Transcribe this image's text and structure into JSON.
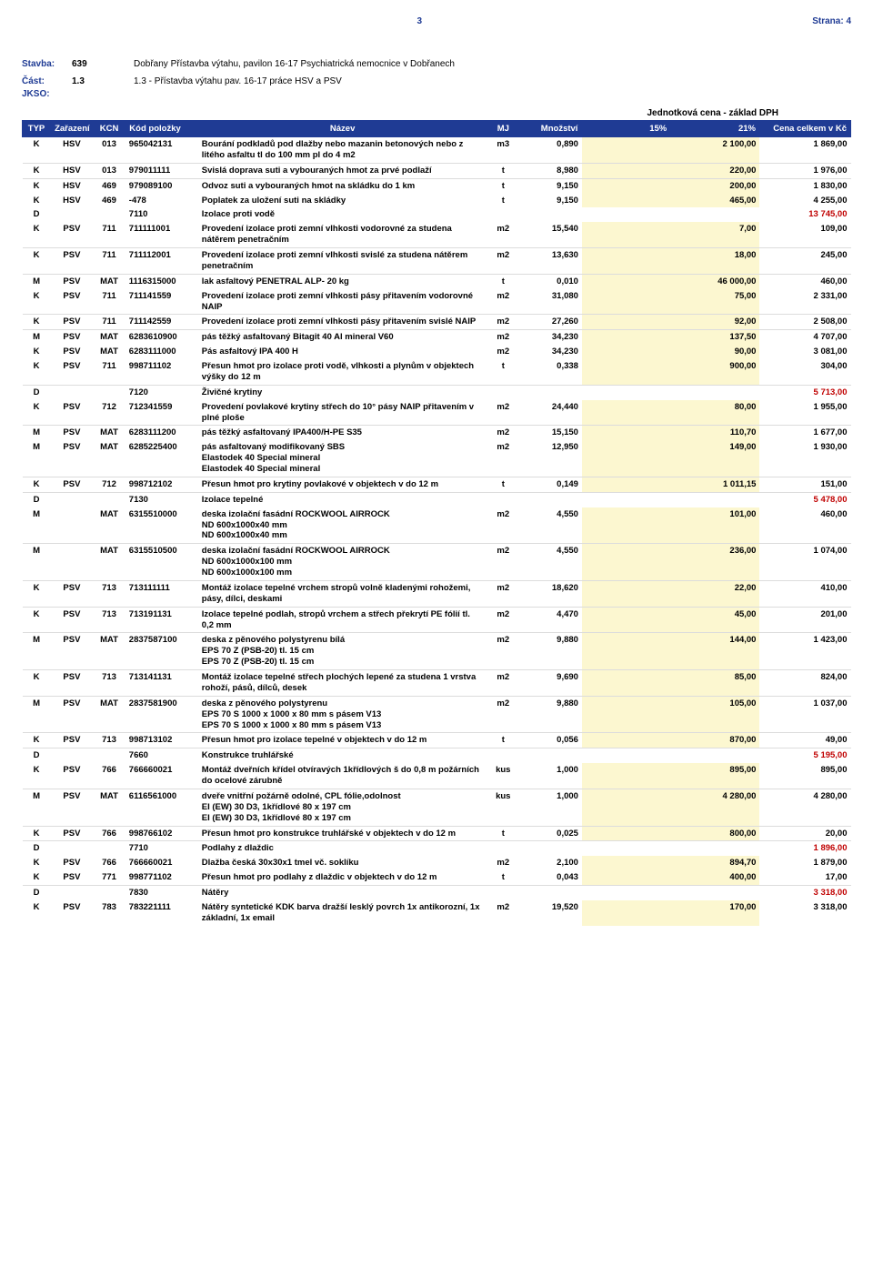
{
  "page": {
    "num": "3",
    "sheet_label": "Strana:",
    "sheet_num": "4"
  },
  "header": {
    "stavba_label": "Stavba:",
    "stavba_code": "639",
    "stavba_text": "Dobřany Přístavba výtahu, pavilon 16-17 Psychiatrická nemocnice v Dobřanech",
    "cast_label": "Část:",
    "cast_code": "1.3",
    "cast_text": "1.3 - Přístavba výtahu pav. 16-17 práce HSV a PSV",
    "jkso_label": "JKSO:"
  },
  "unit_price_header": "Jednotková cena - základ DPH",
  "columns": {
    "typ": "TYP",
    "zar": "Zařazení",
    "kcn": "KCN",
    "kod": "Kód položky",
    "naz": "Název",
    "mj": "MJ",
    "mn": "Množství",
    "p15": "15%",
    "p21": "21%",
    "cena": "Cena celkem v Kč"
  },
  "colors": {
    "header_bg": "#1f3b94",
    "header_text": "#ffffff",
    "highlight": "#fcf7d0",
    "d_price": "#c00000",
    "link_blue": "#1f3b94"
  },
  "rows": [
    {
      "t": "K",
      "z": "HSV",
      "k": "013",
      "kod": "965042131",
      "naz": "Bourání podkladů pod dlažby nebo mazanin betonových nebo z litého asfaltu tl do 100 mm pl do 4 m2",
      "mj": "m3",
      "mn": "0,890",
      "p21": "2 100,00",
      "cena": "1 869,00",
      "grp": "first"
    },
    {
      "t": "K",
      "z": "HSV",
      "k": "013",
      "kod": "979011111",
      "naz": "Svislá doprava suti a vybouraných hmot za prvé podlaží",
      "mj": "t",
      "mn": "8,980",
      "p21": "220,00",
      "cena": "1 976,00",
      "grp": "top"
    },
    {
      "t": "K",
      "z": "HSV",
      "k": "469",
      "kod": "979089100",
      "naz": "Odvoz suti a vybouraných hmot na skládku do 1 km",
      "mj": "t",
      "mn": "9,150",
      "p21": "200,00",
      "cena": "1 830,00",
      "grp": "top"
    },
    {
      "t": "K",
      "z": "HSV",
      "k": "469",
      "kod": "-478",
      "naz": "Poplatek za uložení suti na skládky",
      "mj": "t",
      "mn": "9,150",
      "p21": "465,00",
      "cena": "4 255,00"
    },
    {
      "t": "D",
      "kod": "7110",
      "naz": "Izolace proti vodě",
      "cena": "13 745,00"
    },
    {
      "t": "K",
      "z": "PSV",
      "k": "711",
      "kod": "711111001",
      "naz": "Provedení izolace proti zemní vlhkosti vodorovné za studena nátěrem penetračním",
      "mj": "m2",
      "mn": "15,540",
      "p21": "7,00",
      "cena": "109,00"
    },
    {
      "t": "K",
      "z": "PSV",
      "k": "711",
      "kod": "711112001",
      "naz": "Provedení izolace proti zemní vlhkosti svislé za studena nátěrem penetračním",
      "mj": "m2",
      "mn": "13,630",
      "p21": "18,00",
      "cena": "245,00",
      "grp": "top"
    },
    {
      "t": "M",
      "z": "PSV",
      "k": "MAT",
      "kod": "1116315000",
      "naz": "lak asfaltový PENETRAL ALP- 20 kg",
      "mj": "t",
      "mn": "0,010",
      "p21": "46 000,00",
      "cena": "460,00",
      "grp": "top"
    },
    {
      "t": "K",
      "z": "PSV",
      "k": "711",
      "kod": "711141559",
      "naz": "Provedení izolace proti zemní vlhkosti pásy přitavením vodorovné NAIP",
      "mj": "m2",
      "mn": "31,080",
      "p21": "75,00",
      "cena": "2 331,00"
    },
    {
      "t": "K",
      "z": "PSV",
      "k": "711",
      "kod": "711142559",
      "naz": "Provedení izolace proti zemní vlhkosti pásy přitavením svislé NAIP",
      "mj": "m2",
      "mn": "27,260",
      "p21": "92,00",
      "cena": "2 508,00",
      "grp": "top"
    },
    {
      "t": "M",
      "z": "PSV",
      "k": "MAT",
      "kod": "6283610900",
      "naz": "pás těžký asfaltovaný Bitagit 40 Al mineral V60",
      "mj": "m2",
      "mn": "34,230",
      "p21": "137,50",
      "cena": "4 707,00",
      "grp": "top"
    },
    {
      "t": "K",
      "z": "PSV",
      "k": "MAT",
      "kod": "6283111000",
      "naz": "Pás asfaltový IPA 400 H",
      "mj": "m2",
      "mn": "34,230",
      "p21": "90,00",
      "cena": "3 081,00"
    },
    {
      "t": "K",
      "z": "PSV",
      "k": "711",
      "kod": "998711102",
      "naz": "Přesun hmot pro izolace proti vodě, vlhkosti a plynům v objektech výšky do 12 m",
      "mj": "t",
      "mn": "0,338",
      "p21": "900,00",
      "cena": "304,00"
    },
    {
      "t": "D",
      "kod": "7120",
      "naz": "Živičné krytiny",
      "cena": "5 713,00",
      "grp": "top"
    },
    {
      "t": "K",
      "z": "PSV",
      "k": "712",
      "kod": "712341559",
      "naz": "Provedení povlakové krytiny střech do 10° pásy NAIP přitavením v plné ploše",
      "mj": "m2",
      "mn": "24,440",
      "p21": "80,00",
      "cena": "1 955,00"
    },
    {
      "t": "M",
      "z": "PSV",
      "k": "MAT",
      "kod": "6283111200",
      "naz": "pás těžký asfaltovaný IPA400/H-PE S35",
      "mj": "m2",
      "mn": "15,150",
      "p21": "110,70",
      "cena": "1 677,00",
      "grp": "top"
    },
    {
      "t": "M",
      "z": "PSV",
      "k": "MAT",
      "kod": "6285225400",
      "naz": "pás asfaltovaný modifikovaný SBS\nElastodek 40 Special mineral\nElastodek 40 Special mineral",
      "mj": "m2",
      "mn": "12,950",
      "p21": "149,00",
      "cena": "1 930,00"
    },
    {
      "t": "K",
      "z": "PSV",
      "k": "712",
      "kod": "998712102",
      "naz": "Přesun hmot pro krytiny povlakové v objektech v do 12 m",
      "mj": "t",
      "mn": "0,149",
      "p21": "1 011,15",
      "cena": "151,00",
      "grp": "top"
    },
    {
      "t": "D",
      "kod": "7130",
      "naz": "Izolace tepelné",
      "cena": "5 478,00",
      "grp": "top"
    },
    {
      "t": "M",
      "k": "MAT",
      "kod": "6315510000",
      "naz": "deska izolační fasádní ROCKWOOL AIRROCK\nND 600x1000x40 mm\nND 600x1000x40 mm",
      "mj": "m2",
      "mn": "4,550",
      "p21": "101,00",
      "cena": "460,00"
    },
    {
      "t": "M",
      "k": "MAT",
      "kod": "6315510500",
      "naz": "deska izolační fasádní ROCKWOOL AIRROCK\nND 600x1000x100 mm\nND 600x1000x100 mm",
      "mj": "m2",
      "mn": "4,550",
      "p21": "236,00",
      "cena": "1 074,00",
      "grp": "top"
    },
    {
      "t": "K",
      "z": "PSV",
      "k": "713",
      "kod": "713111111",
      "naz": "Montáž izolace tepelné vrchem stropů volně kladenými rohožemi, pásy, dílci, deskami",
      "mj": "m2",
      "mn": "18,620",
      "p21": "22,00",
      "cena": "410,00",
      "grp": "top"
    },
    {
      "t": "K",
      "z": "PSV",
      "k": "713",
      "kod": "713191131",
      "naz": "Izolace tepelné podlah, stropů vrchem a střech překrytí PE fólií tl. 0,2 mm",
      "mj": "m2",
      "mn": "4,470",
      "p21": "45,00",
      "cena": "201,00",
      "grp": "top"
    },
    {
      "t": "M",
      "z": "PSV",
      "k": "MAT",
      "kod": "2837587100",
      "naz": "deska z pěnového polystyrenu bílá\nEPS 70 Z (PSB-20) tl. 15 cm\nEPS 70 Z (PSB-20) tl. 15 cm",
      "mj": "m2",
      "mn": "9,880",
      "p21": "144,00",
      "cena": "1 423,00",
      "grp": "top"
    },
    {
      "t": "K",
      "z": "PSV",
      "k": "713",
      "kod": "713141131",
      "naz": "Montáž izolace tepelné střech plochých lepené za studena 1 vrstva rohoží, pásů, dílců, desek",
      "mj": "m2",
      "mn": "9,690",
      "p21": "85,00",
      "cena": "824,00",
      "grp": "top"
    },
    {
      "t": "M",
      "z": "PSV",
      "k": "MAT",
      "kod": "2837581900",
      "naz": "deska z pěnového polystyrenu\nEPS 70 S 1000 x 1000 x 80 mm s pásem V13\nEPS 70 S 1000 x 1000 x 80 mm s pásem V13",
      "mj": "m2",
      "mn": "9,880",
      "p21": "105,00",
      "cena": "1 037,00",
      "grp": "top"
    },
    {
      "t": "K",
      "z": "PSV",
      "k": "713",
      "kod": "998713102",
      "naz": "Přesun hmot pro izolace tepelné v objektech v do 12 m",
      "mj": "t",
      "mn": "0,056",
      "p21": "870,00",
      "cena": "49,00",
      "grp": "top"
    },
    {
      "t": "D",
      "kod": "7660",
      "naz": "Konstrukce truhlářské",
      "cena": "5 195,00",
      "grp": "top"
    },
    {
      "t": "K",
      "z": "PSV",
      "k": "766",
      "kod": "766660021",
      "naz": "Montáž dveřních křídel otvíravých 1křídlových š do 0,8 m požárních do ocelové zárubně",
      "mj": "kus",
      "mn": "1,000",
      "p21": "895,00",
      "cena": "895,00"
    },
    {
      "t": "M",
      "z": "PSV",
      "k": "MAT",
      "kod": "6116561000",
      "naz": "dveře vnitřní požárně odolné, CPL fólie,odolnost\nEI (EW) 30 D3, 1křídlové 80 x 197 cm\nEI (EW) 30 D3, 1křídlové 80 x 197 cm",
      "mj": "kus",
      "mn": "1,000",
      "p21": "4 280,00",
      "cena": "4 280,00",
      "grp": "top"
    },
    {
      "t": "K",
      "z": "PSV",
      "k": "766",
      "kod": "998766102",
      "naz": "Přesun hmot pro konstrukce truhlářské v objektech v do 12 m",
      "mj": "t",
      "mn": "0,025",
      "p21": "800,00",
      "cena": "20,00",
      "grp": "top"
    },
    {
      "t": "D",
      "kod": "7710",
      "naz": "Podlahy z dlaždic",
      "cena": "1 896,00",
      "grp": "top"
    },
    {
      "t": "K",
      "z": "PSV",
      "k": "766",
      "kod": "766660021",
      "naz": "Dlažba česká 30x30x1 tmel vč. soklíku",
      "mj": "m2",
      "mn": "2,100",
      "p21": "894,70",
      "cena": "1 879,00"
    },
    {
      "t": "K",
      "z": "PSV",
      "k": "771",
      "kod": "998771102",
      "naz": "Přesun hmot pro podlahy z dlaždic v objektech v do 12 m",
      "mj": "t",
      "mn": "0,043",
      "p21": "400,00",
      "cena": "17,00"
    },
    {
      "t": "D",
      "kod": "7830",
      "naz": "Nátěry",
      "cena": "3 318,00",
      "grp": "top"
    },
    {
      "t": "K",
      "z": "PSV",
      "k": "783",
      "kod": "783221111",
      "naz": "Nátěry syntetické KDK barva dražší lesklý povrch 1x antikorozní, 1x základní, 1x email",
      "mj": "m2",
      "mn": "19,520",
      "p21": "170,00",
      "cena": "3 318,00"
    }
  ]
}
